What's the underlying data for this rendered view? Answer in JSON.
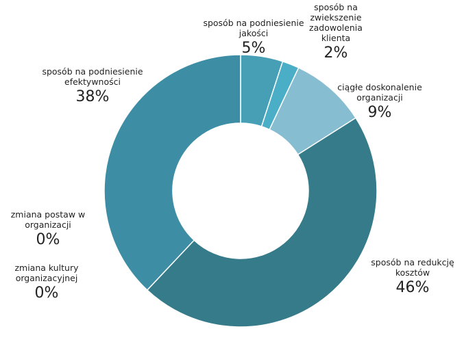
{
  "chart_data": {
    "type": "pie",
    "donut": true,
    "slices": [
      {
        "label": "sposób na podniesienie jakości",
        "value": 5,
        "pct_label": "5%",
        "color": "#479fb6"
      },
      {
        "label": "sposób na zwiekszenie zadowolenia klienta",
        "value": 2,
        "pct_label": "2%",
        "color": "#4aaec6"
      },
      {
        "label": "ciągłe doskonalenie organizacji",
        "value": 9,
        "pct_label": "9%",
        "color": "#87bdd0"
      },
      {
        "label": "sposób na redukcję kosztów",
        "value": 46,
        "pct_label": "46%",
        "color": "#367b8a"
      },
      {
        "label": "zmiana kultury organizacyjnej",
        "value": 0,
        "pct_label": "0%",
        "color": "#3a8796"
      },
      {
        "label": "zmiana postaw w organizacji",
        "value": 0,
        "pct_label": "0%",
        "color": "#3a8796"
      },
      {
        "label": "sposób na podniesienie efektywności",
        "value": 38,
        "pct_label": "38%",
        "color": "#3d8ea5"
      }
    ]
  }
}
